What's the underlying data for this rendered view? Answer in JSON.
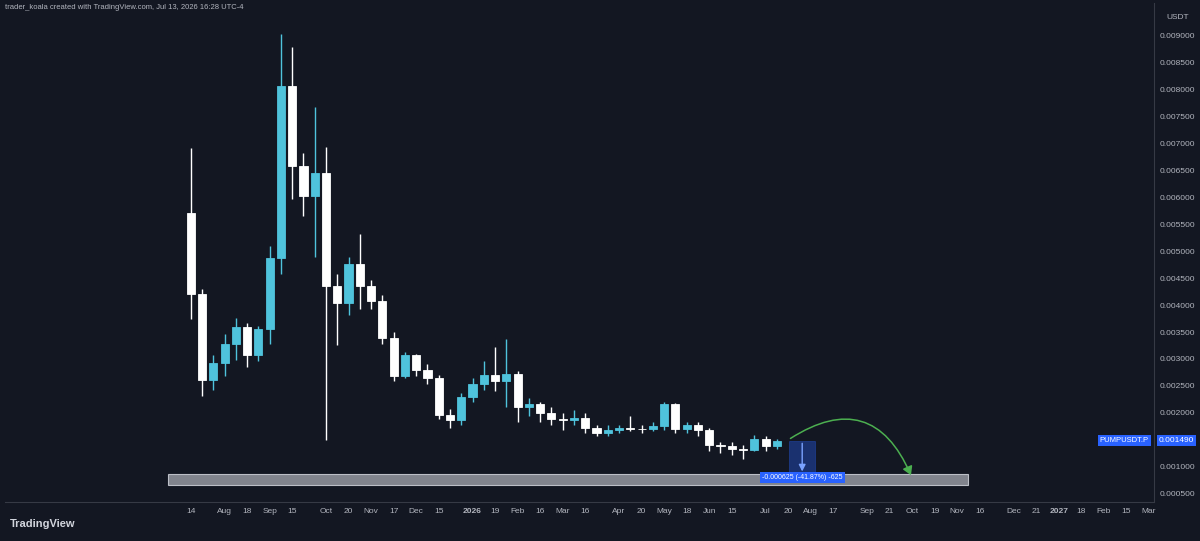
{
  "chart_data": {
    "type": "candlestick",
    "header": "trader_koala created with TradingView.com, Jul 13, 2026 16:28 UTC-4",
    "axis_unit": "USDT",
    "logo": "TradingView",
    "grid": false,
    "categories": [
      null,
      null,
      null,
      null,
      null,
      null,
      null,
      null,
      null,
      null,
      null,
      null,
      null,
      null,
      null,
      null,
      "14",
      null,
      null,
      "Aug",
      null,
      "18",
      null,
      "Sep",
      null,
      "15",
      null,
      null,
      "Oct",
      null,
      "20",
      null,
      "Nov",
      null,
      "17",
      null,
      "Dec",
      null,
      "15",
      null,
      null,
      "2026",
      null,
      "19",
      null,
      "Feb",
      null,
      "16",
      null,
      "Mar",
      null,
      "16",
      null,
      null,
      "Apr",
      null,
      "20",
      null,
      "May",
      null,
      "18",
      null,
      "Jun",
      null,
      "15",
      null,
      null,
      "Jul",
      null,
      "20",
      null,
      "Aug",
      null,
      "17",
      null,
      null,
      "Sep",
      null,
      "21",
      null,
      "Oct",
      null,
      "19",
      null,
      "Nov",
      null,
      "16",
      null,
      null,
      "Dec",
      null,
      "21",
      null,
      "2027",
      null,
      "18",
      null,
      "Feb",
      null,
      "15",
      null,
      "Mar"
    ],
    "open": [
      null,
      null,
      null,
      null,
      null,
      null,
      null,
      null,
      null,
      null,
      null,
      null,
      null,
      null,
      null,
      null,
      0.0057,
      0.00421,
      0.00261,
      0.00292,
      0.00328,
      0.0036,
      0.00307,
      0.00355,
      0.00487,
      0.00806,
      0.00657,
      0.00602,
      0.00644,
      0.00435,
      0.00403,
      0.00476,
      0.00435,
      0.00408,
      0.00339,
      0.00268,
      0.00307,
      0.0028,
      0.00264,
      0.00196,
      0.00187,
      0.0023,
      0.00253,
      0.0027,
      0.00259,
      0.00273,
      0.00211,
      0.00216,
      0.002,
      0.00189,
      0.00187,
      0.00191,
      0.00173,
      0.00162,
      0.00168,
      0.00173,
      0.00171,
      0.0017,
      0.00176,
      0.00216,
      0.0017,
      0.00178,
      0.00168,
      0.00141,
      0.00138,
      0.00134,
      0.00131,
      0.00152,
      0.00138,
      null,
      null,
      null,
      null,
      null,
      null,
      null,
      null,
      null,
      null,
      null,
      null,
      null,
      null,
      null,
      null,
      null,
      null,
      null,
      null,
      null,
      null,
      null,
      null,
      null,
      null,
      null,
      null,
      null,
      null,
      null,
      null,
      null
    ],
    "high": [
      null,
      null,
      null,
      null,
      null,
      null,
      null,
      null,
      null,
      null,
      null,
      null,
      null,
      null,
      null,
      null,
      0.0069,
      0.0043,
      0.00307,
      0.00346,
      0.00376,
      0.00366,
      0.00362,
      0.0051,
      0.00902,
      0.00878,
      0.00681,
      0.00767,
      0.00692,
      0.00457,
      0.00489,
      0.00532,
      0.00446,
      0.00419,
      0.0035,
      0.00313,
      0.00309,
      0.00291,
      0.0027,
      0.00208,
      0.00237,
      0.00264,
      0.00296,
      0.00323,
      0.00337,
      0.00277,
      0.00227,
      0.00221,
      0.00211,
      0.002,
      0.00205,
      0.002,
      0.00178,
      0.00178,
      0.00178,
      0.00194,
      0.00178,
      0.00184,
      0.00221,
      0.00219,
      0.00184,
      0.00184,
      0.00173,
      0.00146,
      0.00146,
      0.00141,
      0.00159,
      0.00157,
      0.00152,
      null,
      null,
      null,
      null,
      null,
      null,
      null,
      null,
      null,
      null,
      null,
      null,
      null,
      null,
      null,
      null,
      null,
      null,
      null,
      null,
      null,
      null,
      null,
      null,
      null,
      null,
      null,
      null,
      null,
      null,
      null,
      null,
      null
    ],
    "low": [
      null,
      null,
      null,
      null,
      null,
      null,
      null,
      null,
      null,
      null,
      null,
      null,
      null,
      null,
      null,
      null,
      0.00375,
      0.00231,
      0.00243,
      0.00269,
      0.00298,
      0.00285,
      0.00296,
      0.00328,
      0.00457,
      0.00596,
      0.00564,
      0.00489,
      0.0015,
      0.00325,
      0.00382,
      0.00392,
      0.00392,
      0.00328,
      0.00259,
      0.00264,
      0.00269,
      0.00253,
      0.00189,
      0.00173,
      0.00178,
      0.00221,
      0.00243,
      0.0024,
      0.00211,
      0.00184,
      0.00194,
      0.00184,
      0.00178,
      0.00168,
      0.00178,
      0.00162,
      0.00157,
      0.00157,
      0.00162,
      0.00166,
      0.00162,
      0.00166,
      0.00168,
      0.00162,
      0.00162,
      0.00157,
      0.0013,
      0.00125,
      0.00123,
      0.00114,
      0.0013,
      0.0013,
      0.00133,
      null,
      null,
      null,
      null,
      null,
      null,
      null,
      null,
      null,
      null,
      null,
      null,
      null,
      null,
      null,
      null,
      null,
      null,
      null,
      null,
      null,
      null,
      null,
      null,
      null,
      null,
      null,
      null,
      null,
      null,
      null,
      null,
      null
    ],
    "close": [
      null,
      null,
      null,
      null,
      null,
      null,
      null,
      null,
      null,
      null,
      null,
      null,
      null,
      null,
      null,
      null,
      0.00421,
      0.00261,
      0.00292,
      0.00328,
      0.0036,
      0.00307,
      0.00355,
      0.00487,
      0.00806,
      0.00657,
      0.00602,
      0.00644,
      0.00435,
      0.00403,
      0.00476,
      0.00435,
      0.00408,
      0.00339,
      0.00268,
      0.00307,
      0.0028,
      0.00264,
      0.00196,
      0.00187,
      0.0023,
      0.00253,
      0.0027,
      0.00259,
      0.00273,
      0.00211,
      0.00216,
      0.002,
      0.00189,
      0.00187,
      0.00191,
      0.00173,
      0.00162,
      0.00168,
      0.00173,
      0.00171,
      0.0017,
      0.00176,
      0.00216,
      0.0017,
      0.00178,
      0.00168,
      0.00141,
      0.00138,
      0.00134,
      0.00131,
      0.00152,
      0.00138,
      0.00149,
      null,
      null,
      null,
      null,
      null,
      null,
      null,
      null,
      null,
      null,
      null,
      null,
      null,
      null,
      null,
      null,
      null,
      null,
      null,
      null,
      null,
      null,
      null,
      null,
      null,
      null,
      null,
      null,
      null,
      null,
      null,
      null,
      null
    ],
    "colors": [
      null,
      null,
      null,
      null,
      null,
      null,
      null,
      null,
      null,
      null,
      null,
      null,
      null,
      null,
      null,
      null,
      "#ffffff",
      "#ffffff",
      "#4fc3dc",
      "#4fc3dc",
      "#4fc3dc",
      "#ffffff",
      "#4fc3dc",
      "#4fc3dc",
      "#4fc3dc",
      "#ffffff",
      "#ffffff",
      "#4fc3dc",
      "#ffffff",
      "#ffffff",
      "#4fc3dc",
      "#ffffff",
      "#ffffff",
      "#ffffff",
      "#ffffff",
      "#4fc3dc",
      "#ffffff",
      "#ffffff",
      "#ffffff",
      "#ffffff",
      "#4fc3dc",
      "#4fc3dc",
      "#4fc3dc",
      "#ffffff",
      "#4fc3dc",
      "#ffffff",
      "#4fc3dc",
      "#ffffff",
      "#ffffff",
      "#ffffff",
      "#4fc3dc",
      "#ffffff",
      "#ffffff",
      "#4fc3dc",
      "#4fc3dc",
      "#ffffff",
      "#ffffff",
      "#4fc3dc",
      "#4fc3dc",
      "#ffffff",
      "#4fc3dc",
      "#ffffff",
      "#ffffff",
      "#ffffff",
      "#ffffff",
      "#ffffff",
      "#4fc3dc",
      "#ffffff",
      "#4fc3dc",
      null,
      null,
      null,
      null,
      null,
      null,
      null,
      null,
      null,
      null,
      null,
      null,
      null,
      null,
      null,
      null,
      null,
      null,
      null,
      null,
      null,
      null,
      null,
      null,
      null,
      null,
      null,
      null,
      null,
      null,
      null,
      null,
      null
    ],
    "ylim": [
      0.00035,
      0.0096
    ],
    "yticks": [
      {
        "value": 0.0005,
        "label": "0.000500"
      },
      {
        "value": 0.001,
        "label": "0.001000"
      },
      {
        "value": 0.002,
        "label": "0.002000"
      },
      {
        "value": 0.0025,
        "label": "0.002500"
      },
      {
        "value": 0.003,
        "label": "0.003000"
      },
      {
        "value": 0.0035,
        "label": "0.003500"
      },
      {
        "value": 0.004,
        "label": "0.004000"
      },
      {
        "value": 0.0045,
        "label": "0.004500"
      },
      {
        "value": 0.005,
        "label": "0.005000"
      },
      {
        "value": 0.0055,
        "label": "0.005500"
      },
      {
        "value": 0.006,
        "label": "0.006000"
      },
      {
        "value": 0.0065,
        "label": "0.006500"
      },
      {
        "value": 0.007,
        "label": "0.007000"
      },
      {
        "value": 0.0075,
        "label": "0.007500"
      },
      {
        "value": 0.008,
        "label": "0.008000"
      },
      {
        "value": 0.0085,
        "label": "0.008500"
      },
      {
        "value": 0.009,
        "label": "0.009000"
      }
    ],
    "zone": {
      "low": 0.00066,
      "high": 0.00087,
      "x": [
        14,
        85
      ]
    },
    "measurement": {
      "from": 0.00149,
      "change": -0.000625,
      "x": [
        69.1,
        71.4
      ],
      "label": "-0.000625 (-41.87%) -625"
    },
    "projection": {
      "x": [
        69,
        80
      ],
      "y": [
        0.0015,
        0.0008
      ]
    },
    "last_price": {
      "symbol": "PUMPUSDT.P",
      "value": 0.00149,
      "label": "0.001490"
    }
  }
}
